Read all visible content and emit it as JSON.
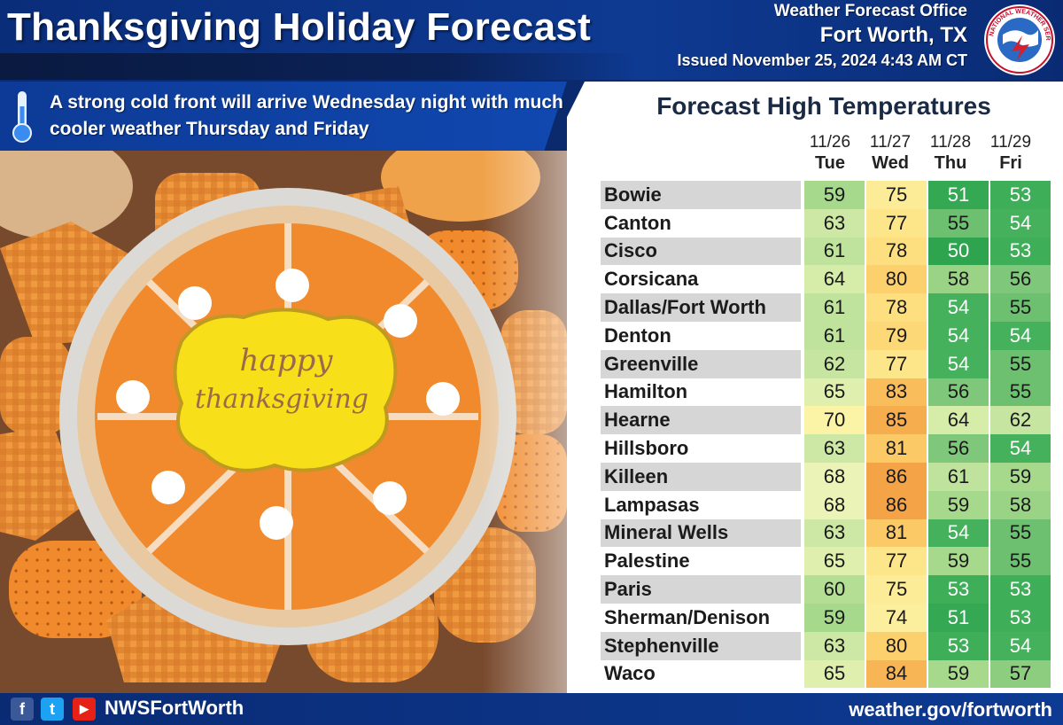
{
  "header": {
    "title": "Thanksgiving Holiday Forecast",
    "office_line1": "Weather Forecast Office",
    "office_line2": "Fort Worth, TX",
    "issued": "Issued November 25, 2024 4:43 AM CT",
    "logo_text": "NATIONAL WEATHER SERVICE"
  },
  "subheader": {
    "text": "A strong cold front will arrive Wednesday night with much cooler weather Thursday and Friday",
    "icon": "thermometer-icon"
  },
  "image": {
    "cookie_text_line1": "happy",
    "cookie_text_line2": "thanksgiving"
  },
  "forecast": {
    "title": "Forecast High Temperatures",
    "columns": [
      {
        "date": "11/26",
        "day": "Tue"
      },
      {
        "date": "11/27",
        "day": "Wed"
      },
      {
        "date": "11/28",
        "day": "Thu"
      },
      {
        "date": "11/29",
        "day": "Fri"
      }
    ],
    "rows": [
      {
        "city": "Bowie",
        "temps": [
          59,
          75,
          51,
          53
        ]
      },
      {
        "city": "Canton",
        "temps": [
          63,
          77,
          55,
          54
        ]
      },
      {
        "city": "Cisco",
        "temps": [
          61,
          78,
          50,
          53
        ]
      },
      {
        "city": "Corsicana",
        "temps": [
          64,
          80,
          58,
          56
        ]
      },
      {
        "city": "Dallas/Fort Worth",
        "temps": [
          61,
          78,
          54,
          55
        ]
      },
      {
        "city": "Denton",
        "temps": [
          61,
          79,
          54,
          54
        ]
      },
      {
        "city": "Greenville",
        "temps": [
          62,
          77,
          54,
          55
        ]
      },
      {
        "city": "Hamilton",
        "temps": [
          65,
          83,
          56,
          55
        ]
      },
      {
        "city": "Hearne",
        "temps": [
          70,
          85,
          64,
          62
        ]
      },
      {
        "city": "Hillsboro",
        "temps": [
          63,
          81,
          56,
          54
        ]
      },
      {
        "city": "Killeen",
        "temps": [
          68,
          86,
          61,
          59
        ]
      },
      {
        "city": "Lampasas",
        "temps": [
          68,
          86,
          59,
          58
        ]
      },
      {
        "city": "Mineral Wells",
        "temps": [
          63,
          81,
          54,
          55
        ]
      },
      {
        "city": "Palestine",
        "temps": [
          65,
          77,
          59,
          55
        ]
      },
      {
        "city": "Paris",
        "temps": [
          60,
          75,
          53,
          53
        ]
      },
      {
        "city": "Sherman/Denison",
        "temps": [
          59,
          74,
          51,
          53
        ]
      },
      {
        "city": "Stephenville",
        "temps": [
          63,
          80,
          53,
          54
        ]
      },
      {
        "city": "Waco",
        "temps": [
          65,
          84,
          59,
          57
        ]
      }
    ],
    "color_scale": {
      "50": "#2ea44f",
      "51": "#34a853",
      "53": "#3fae59",
      "54": "#45b15d",
      "55": "#6cc070",
      "56": "#7fc77a",
      "57": "#8ccd80",
      "58": "#9ad386",
      "59": "#a7d98d",
      "60": "#b5de95",
      "61": "#bfe29c",
      "62": "#c6e5a0",
      "63": "#cde8a4",
      "64": "#d6eca9",
      "65": "#dfefae",
      "68": "#ecf3b6",
      "70": "#fbf3a6",
      "74": "#fbee9c",
      "75": "#fcec97",
      "77": "#fde58a",
      "78": "#fddf80",
      "79": "#fdd877",
      "80": "#fcd06c",
      "81": "#fbca66",
      "83": "#f9bd5b",
      "84": "#f8b555",
      "85": "#f6ad4e",
      "86": "#f4a447"
    }
  },
  "footer": {
    "handle": "NWSFortWorth",
    "website": "weather.gov/fortworth",
    "social_icons": [
      "facebook-icon",
      "twitter-icon",
      "youtube-icon"
    ],
    "facebook_glyph": "f",
    "twitter_glyph": "t",
    "youtube_glyph": "▶"
  }
}
